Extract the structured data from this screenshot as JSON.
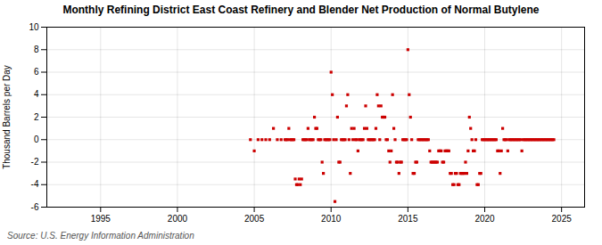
{
  "chart_data": {
    "type": "scatter",
    "title": "Monthly Refining District East Coast Refinery and Blender Net Production of Normal Butylene",
    "ylabel": "Thousand Barrels per Day",
    "caption": "Source: U.S. Energy Information Administration",
    "x": [
      2004.75,
      2005.0,
      2005.25,
      2005.5,
      2005.75,
      2006.0,
      2006.25,
      2006.5,
      2006.75,
      2007.0,
      2007.083,
      2007.167,
      2007.25,
      2007.333,
      2007.417,
      2007.5,
      2007.583,
      2007.667,
      2007.75,
      2007.833,
      2007.917,
      2008.0,
      2008.083,
      2008.167,
      2008.25,
      2008.333,
      2008.417,
      2008.5,
      2008.583,
      2008.667,
      2008.75,
      2008.833,
      2008.917,
      2009.0,
      2009.083,
      2009.167,
      2009.25,
      2009.333,
      2009.417,
      2009.5,
      2009.583,
      2009.667,
      2009.75,
      2009.833,
      2009.917,
      2010.0,
      2010.083,
      2010.167,
      2010.25,
      2010.333,
      2010.417,
      2010.5,
      2010.583,
      2010.667,
      2010.75,
      2010.833,
      2010.917,
      2011.0,
      2011.083,
      2011.167,
      2011.25,
      2011.333,
      2011.417,
      2011.5,
      2011.583,
      2011.667,
      2011.75,
      2011.833,
      2011.917,
      2012.0,
      2012.083,
      2012.167,
      2012.25,
      2012.333,
      2012.417,
      2012.5,
      2012.583,
      2012.667,
      2012.75,
      2012.833,
      2012.917,
      2013.0,
      2013.083,
      2013.167,
      2013.25,
      2013.333,
      2013.417,
      2013.5,
      2013.583,
      2013.667,
      2013.75,
      2013.833,
      2013.917,
      2014.0,
      2014.083,
      2014.167,
      2014.25,
      2014.333,
      2014.417,
      2014.5,
      2014.583,
      2014.667,
      2014.75,
      2014.833,
      2014.917,
      2015.0,
      2015.083,
      2015.167,
      2015.25,
      2015.333,
      2015.417,
      2015.5,
      2015.583,
      2015.667,
      2015.75,
      2015.833,
      2015.917,
      2016.0,
      2016.083,
      2016.167,
      2016.25,
      2016.333,
      2016.417,
      2016.5,
      2016.583,
      2016.667,
      2016.75,
      2016.833,
      2016.917,
      2017.0,
      2017.083,
      2017.167,
      2017.25,
      2017.333,
      2017.417,
      2017.5,
      2017.583,
      2017.667,
      2017.75,
      2017.833,
      2017.917,
      2018.0,
      2018.083,
      2018.167,
      2018.25,
      2018.333,
      2018.417,
      2018.5,
      2018.583,
      2018.667,
      2018.75,
      2018.833,
      2018.917,
      2019.0,
      2019.083,
      2019.167,
      2019.25,
      2019.333,
      2019.417,
      2019.5,
      2019.583,
      2019.667,
      2019.75,
      2019.833,
      2019.917,
      2020.0,
      2020.083,
      2020.167,
      2020.25,
      2020.333,
      2020.417,
      2020.5,
      2020.583,
      2020.667,
      2020.75,
      2020.833,
      2020.917,
      2021.0,
      2021.083,
      2021.167,
      2021.25,
      2021.333,
      2021.417,
      2021.5,
      2021.583,
      2021.667,
      2021.75,
      2021.833,
      2021.917,
      2022.0,
      2022.083,
      2022.167,
      2022.25,
      2022.333,
      2022.417,
      2022.5,
      2022.583,
      2022.667,
      2022.75,
      2022.833,
      2022.917,
      2023.0,
      2023.083,
      2023.167,
      2023.25,
      2023.333,
      2023.417,
      2023.5,
      2023.583,
      2023.667,
      2023.75,
      2023.833,
      2023.917,
      2024.0,
      2024.083,
      2024.167,
      2024.25,
      2024.333,
      2024.417,
      2024.5
    ],
    "values": [
      0.0,
      -1.0,
      0.0,
      0.0,
      0.0,
      0.0,
      1.0,
      0.0,
      0.0,
      0.0,
      0.0,
      0.0,
      1.0,
      0.0,
      0.0,
      0.0,
      0.0,
      -3.5,
      -4.0,
      -4.0,
      -3.5,
      -4.0,
      -3.5,
      0.0,
      0.0,
      0.0,
      0.0,
      1.0,
      0.0,
      0.0,
      0.0,
      0.0,
      2.0,
      1.0,
      1.0,
      0.0,
      0.0,
      0.0,
      -2.0,
      -3.0,
      0.0,
      0.0,
      0.0,
      0.0,
      0.0,
      6.0,
      4.0,
      0.0,
      -5.5,
      0.0,
      2.0,
      -2.0,
      -2.0,
      0.0,
      0.0,
      0.0,
      0.0,
      3.0,
      4.0,
      0.0,
      -3.0,
      1.0,
      0.0,
      1.0,
      0.0,
      0.0,
      -1.0,
      0.0,
      0.0,
      0.0,
      0.0,
      1.0,
      3.0,
      1.0,
      0.0,
      0.0,
      0.0,
      0.0,
      0.0,
      0.0,
      1.0,
      4.0,
      3.0,
      0.0,
      3.0,
      2.0,
      2.0,
      2.0,
      0.0,
      0.0,
      -1.0,
      -2.0,
      -1.0,
      4.0,
      1.0,
      0.0,
      -2.0,
      -2.0,
      -3.0,
      -2.0,
      -2.0,
      0.0,
      0.0,
      0.0,
      0.0,
      8.0,
      4.0,
      2.0,
      0.0,
      -3.0,
      -3.0,
      -2.0,
      -2.0,
      0.0,
      0.0,
      0.0,
      0.0,
      0.0,
      0.0,
      0.0,
      0.0,
      0.0,
      -1.0,
      -2.0,
      -2.0,
      -2.0,
      -2.0,
      -2.0,
      -2.0,
      -1.0,
      -1.0,
      -1.0,
      -2.0,
      -2.0,
      -1.0,
      -1.0,
      -1.0,
      -1.0,
      -3.0,
      -3.0,
      -4.0,
      -4.0,
      -3.0,
      -3.0,
      -4.0,
      -4.0,
      -3.0,
      -3.0,
      -3.0,
      -3.0,
      -2.0,
      -3.0,
      -1.0,
      2.0,
      1.0,
      0.0,
      -1.0,
      -1.0,
      0.0,
      -4.0,
      -4.0,
      -3.0,
      -3.0,
      0.0,
      0.0,
      0.0,
      0.0,
      0.0,
      0.0,
      0.0,
      0.0,
      0.0,
      0.0,
      0.0,
      0.0,
      -1.0,
      -1.0,
      -3.0,
      -1.0,
      1.0,
      0.0,
      0.0,
      0.0,
      -1.0,
      0.0,
      0.0,
      0.0,
      0.0,
      0.0,
      0.0,
      0.0,
      0.0,
      0.0,
      0.0,
      -1.0,
      0.0,
      0.0,
      0.0,
      0.0,
      0.0,
      0.0,
      0.0,
      0.0,
      0.0,
      0.0,
      0.0,
      0.0,
      0.0,
      0.0,
      0.0,
      0.0,
      0.0,
      0.0,
      0.0,
      0.0,
      0.0,
      0.0,
      0.0,
      0.0,
      0.0
    ],
    "color": "#cc0000",
    "marker": "square",
    "xlim": [
      1991.5,
      2026.5
    ],
    "ylim": [
      -6,
      10
    ],
    "xticks": [
      1995,
      2000,
      2005,
      2010,
      2015,
      2020,
      2025
    ],
    "yticks": [
      -6,
      -4,
      -2,
      0,
      2,
      4,
      6,
      8,
      10
    ],
    "grid": true
  }
}
